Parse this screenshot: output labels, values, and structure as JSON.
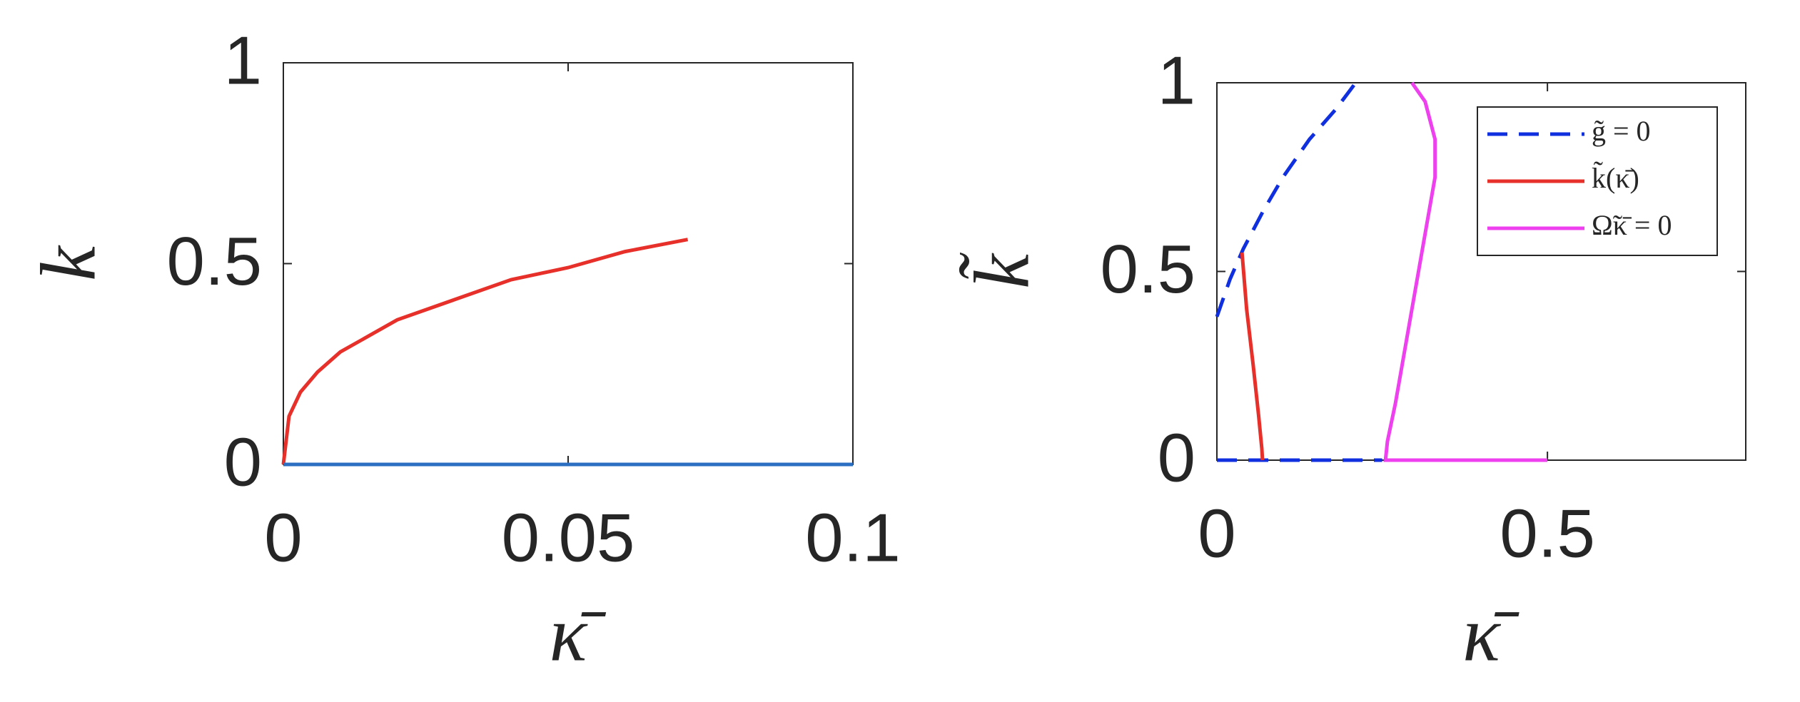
{
  "chart_data": [
    {
      "type": "line",
      "xlabel": "κ̄",
      "ylabel": "k",
      "xlim": [
        0,
        0.1
      ],
      "ylim": [
        0,
        1
      ],
      "xticks": [
        0,
        0.05,
        0.1
      ],
      "yticks": [
        0,
        0.5,
        1
      ],
      "series": [
        {
          "color": "#e8302a",
          "dash": false,
          "x": [
            0,
            0.001,
            0.003,
            0.006,
            0.01,
            0.015,
            0.02,
            0.03,
            0.04,
            0.05,
            0.06,
            0.071
          ],
          "values": [
            0,
            0.12,
            0.18,
            0.23,
            0.28,
            0.32,
            0.36,
            0.41,
            0.46,
            0.49,
            0.53,
            0.56
          ]
        },
        {
          "color": "#2b6fc2",
          "dash": false,
          "x": [
            0,
            0.1
          ],
          "values": [
            0,
            0
          ]
        }
      ]
    },
    {
      "type": "line",
      "xlabel": "κ̄",
      "ylabel": "k̃",
      "xlim": [
        0,
        0.8
      ],
      "ylim": [
        0,
        1
      ],
      "xticks": [
        0,
        0.5
      ],
      "yticks": [
        0,
        0.5,
        1
      ],
      "legend": "upper right",
      "series": [
        {
          "name": "g̃ = 0",
          "color": "#1030e0",
          "dash": true,
          "x": [
            0,
            0.02,
            0.04,
            0.07,
            0.1,
            0.14,
            0.18,
            0.21,
            null,
            0,
            0.25
          ],
          "values": [
            0.38,
            0.48,
            0.56,
            0.66,
            0.75,
            0.85,
            0.93,
            1,
            null,
            0,
            0
          ]
        },
        {
          "name": "k̃(κ̄)",
          "color": "#e8302a",
          "dash": false,
          "x": [
            0.038,
            0.045,
            0.055,
            0.063,
            0.068,
            0.069
          ],
          "values": [
            0.55,
            0.4,
            0.25,
            0.12,
            0.03,
            0
          ]
        },
        {
          "name": "Ω̃κ̄ = 0",
          "color": "#ee40ee",
          "dash": false,
          "x": [
            0.295,
            0.315,
            0.33,
            0.33,
            0.315,
            0.3,
            0.285,
            0.27,
            0.258,
            0.255,
            0.5
          ],
          "values": [
            1,
            0.95,
            0.85,
            0.75,
            0.6,
            0.45,
            0.3,
            0.15,
            0.05,
            0,
            0
          ]
        }
      ]
    }
  ]
}
